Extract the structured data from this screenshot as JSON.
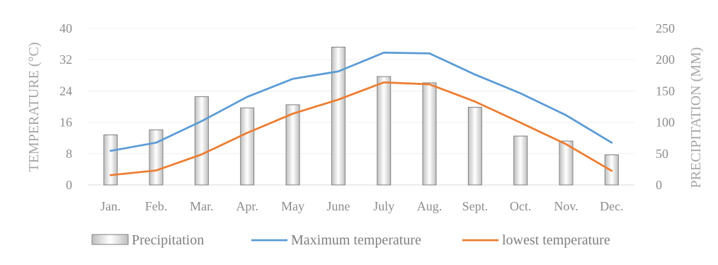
{
  "chart_data": {
    "type": "bar",
    "categories": [
      "Jan.",
      "Feb.",
      "Mar.",
      "Apr.",
      "May",
      "June",
      "July",
      "Aug.",
      "Sept.",
      "Oct.",
      "Nov.",
      "Dec."
    ],
    "ylabel": "TEMPERATURE (°C)",
    "y2label": "PRECIPITATION (MM)",
    "ylim": [
      0,
      40
    ],
    "y_ticks": [
      "0",
      "8",
      "16",
      "24",
      "32",
      "40"
    ],
    "y2lim": [
      0,
      250
    ],
    "y2_ticks": [
      "0",
      "50",
      "100",
      "150",
      "200",
      "250"
    ],
    "grid": true,
    "legend_position": "bottom",
    "series": [
      {
        "name": "Precipitation",
        "type": "bar",
        "axis": "right",
        "color": "#d9d9d9",
        "values": [
          80,
          88,
          141,
          123,
          128,
          220,
          173,
          163,
          124,
          78,
          70,
          48
        ]
      },
      {
        "name": "Maximum temperature",
        "type": "line",
        "axis": "left",
        "color": "#5b9bd5",
        "values": [
          8.7,
          10.8,
          16.3,
          22.5,
          27.1,
          29.0,
          33.8,
          33.6,
          28.2,
          23.4,
          17.8,
          10.8
        ]
      },
      {
        "name": "lowest temperature",
        "type": "line",
        "axis": "left",
        "color": "#ed7d31",
        "values": [
          2.5,
          3.7,
          7.8,
          13.3,
          18.2,
          21.8,
          26.2,
          25.7,
          21.3,
          15.9,
          10.4,
          3.6
        ]
      }
    ]
  }
}
